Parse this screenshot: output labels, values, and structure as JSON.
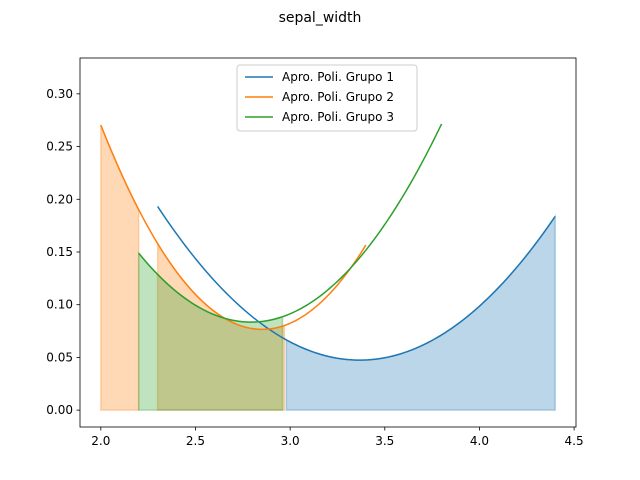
{
  "chart_data": {
    "type": "line",
    "title": "sepal_width",
    "xlabel": "",
    "ylabel": "",
    "xlim": [
      1.89,
      4.51
    ],
    "ylim": [
      -0.016,
      0.334
    ],
    "xticks": [
      2.0,
      2.5,
      3.0,
      3.5,
      4.0,
      4.5
    ],
    "xtick_labels": [
      "2.0",
      "2.5",
      "3.0",
      "3.5",
      "4.0",
      "4.5"
    ],
    "yticks": [
      0.0,
      0.05,
      0.1,
      0.15,
      0.2,
      0.25,
      0.3
    ],
    "ytick_labels": [
      "0.00",
      "0.05",
      "0.10",
      "0.15",
      "0.20",
      "0.25",
      "0.30"
    ],
    "grid": false,
    "legend_position": "upper-center",
    "series": [
      {
        "name": "Apro. Poli. Grupo 1",
        "color": "#1f77b4",
        "x_range": [
          2.3,
          4.4
        ],
        "quadratic": [
          0.1279,
          -0.8614,
          1.4978
        ],
        "fill_ranges": [
          [
            2.98,
            4.4
          ]
        ]
      },
      {
        "name": "Apro. Poli. Grupo 2",
        "color": "#ff7f0e",
        "x_range": [
          2.0,
          3.4
        ],
        "quadratic": [
          0.2667,
          -1.5215,
          2.2466
        ],
        "fill_ranges": [
          [
            2.0,
            2.2
          ],
          [
            2.3,
            2.97
          ]
        ]
      },
      {
        "name": "Apro. Poli. Grupo 3",
        "color": "#2ca02c",
        "x_range": [
          2.2,
          3.8
        ],
        "quadratic": [
          0.1856,
          -1.037,
          1.532
        ],
        "fill_ranges": [
          [
            2.2,
            2.96
          ]
        ]
      }
    ]
  }
}
